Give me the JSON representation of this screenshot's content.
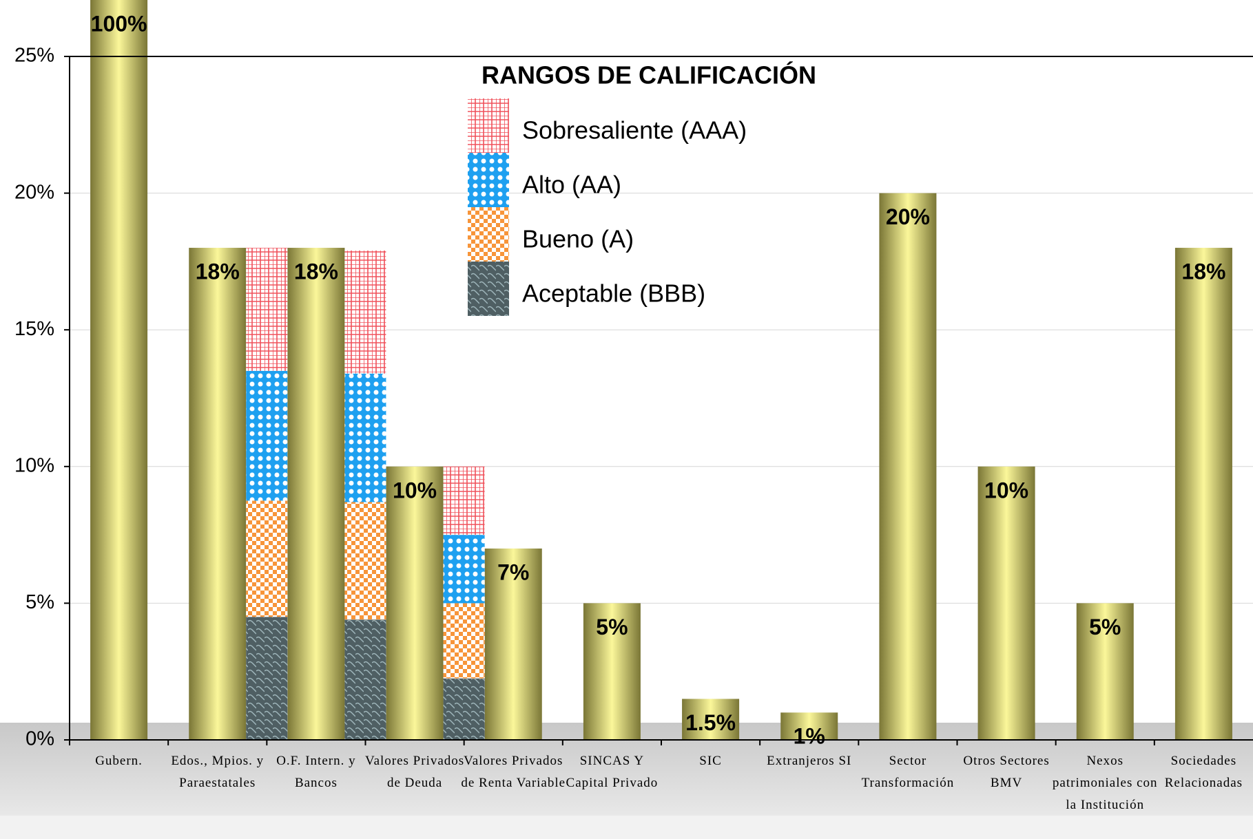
{
  "chart_data": {
    "type": "bar",
    "categories": [
      "Gubern.",
      "Edos., Mpios. y Paraestatales",
      "O.F. Intern. y Bancos",
      "Valores Privados de Deuda",
      "Valores Privados de Renta Variable",
      "SINCAS Y Capital Privado",
      "SIC",
      "Extranjeros SI",
      "Sector Transformación",
      "Otros Sectores BMV",
      "Nexos patrimoniales con la Institución",
      "Sociedades Relacionadas"
    ],
    "values": [
      100,
      18,
      18,
      10,
      7,
      5,
      1.5,
      1,
      20,
      10,
      5,
      18
    ],
    "value_labels": [
      "100%",
      "18%",
      "18%",
      "10%",
      "7%",
      "5%",
      "1.5%",
      "1%",
      "20%",
      "10%",
      "5%",
      "18%"
    ],
    "color": "#e8e27a",
    "legend_title": "RANGOS DE CALIFICACIÓN",
    "series": [
      {
        "name": "Aceptable (BBB)",
        "color": "#4f5f63",
        "values": [
          null,
          4.5,
          4.4,
          2.25,
          null,
          null,
          null,
          null,
          null,
          null,
          null,
          null
        ]
      },
      {
        "name": "Bueno (A)",
        "color": "#f7953a",
        "values": [
          null,
          4.25,
          4.3,
          2.75,
          null,
          null,
          null,
          null,
          null,
          null,
          null,
          null
        ]
      },
      {
        "name": "Alto (AA)",
        "color": "#1ea0f0",
        "values": [
          null,
          4.75,
          4.7,
          2.5,
          null,
          null,
          null,
          null,
          null,
          null,
          null,
          null
        ]
      },
      {
        "name": "Sobresaliente (AAA)",
        "color": "#f0505a",
        "values": [
          null,
          4.5,
          4.5,
          2.5,
          null,
          null,
          null,
          null,
          null,
          null,
          null,
          null
        ]
      }
    ],
    "ylim": [
      0,
      25
    ],
    "yticks": [
      {
        "value": 0,
        "label": "0%"
      },
      {
        "value": 5,
        "label": "5%"
      },
      {
        "value": 10,
        "label": "10%"
      },
      {
        "value": 15,
        "label": "15%"
      },
      {
        "value": 20,
        "label": "20%"
      },
      {
        "value": 25,
        "label": "25%"
      }
    ],
    "grid": true
  }
}
